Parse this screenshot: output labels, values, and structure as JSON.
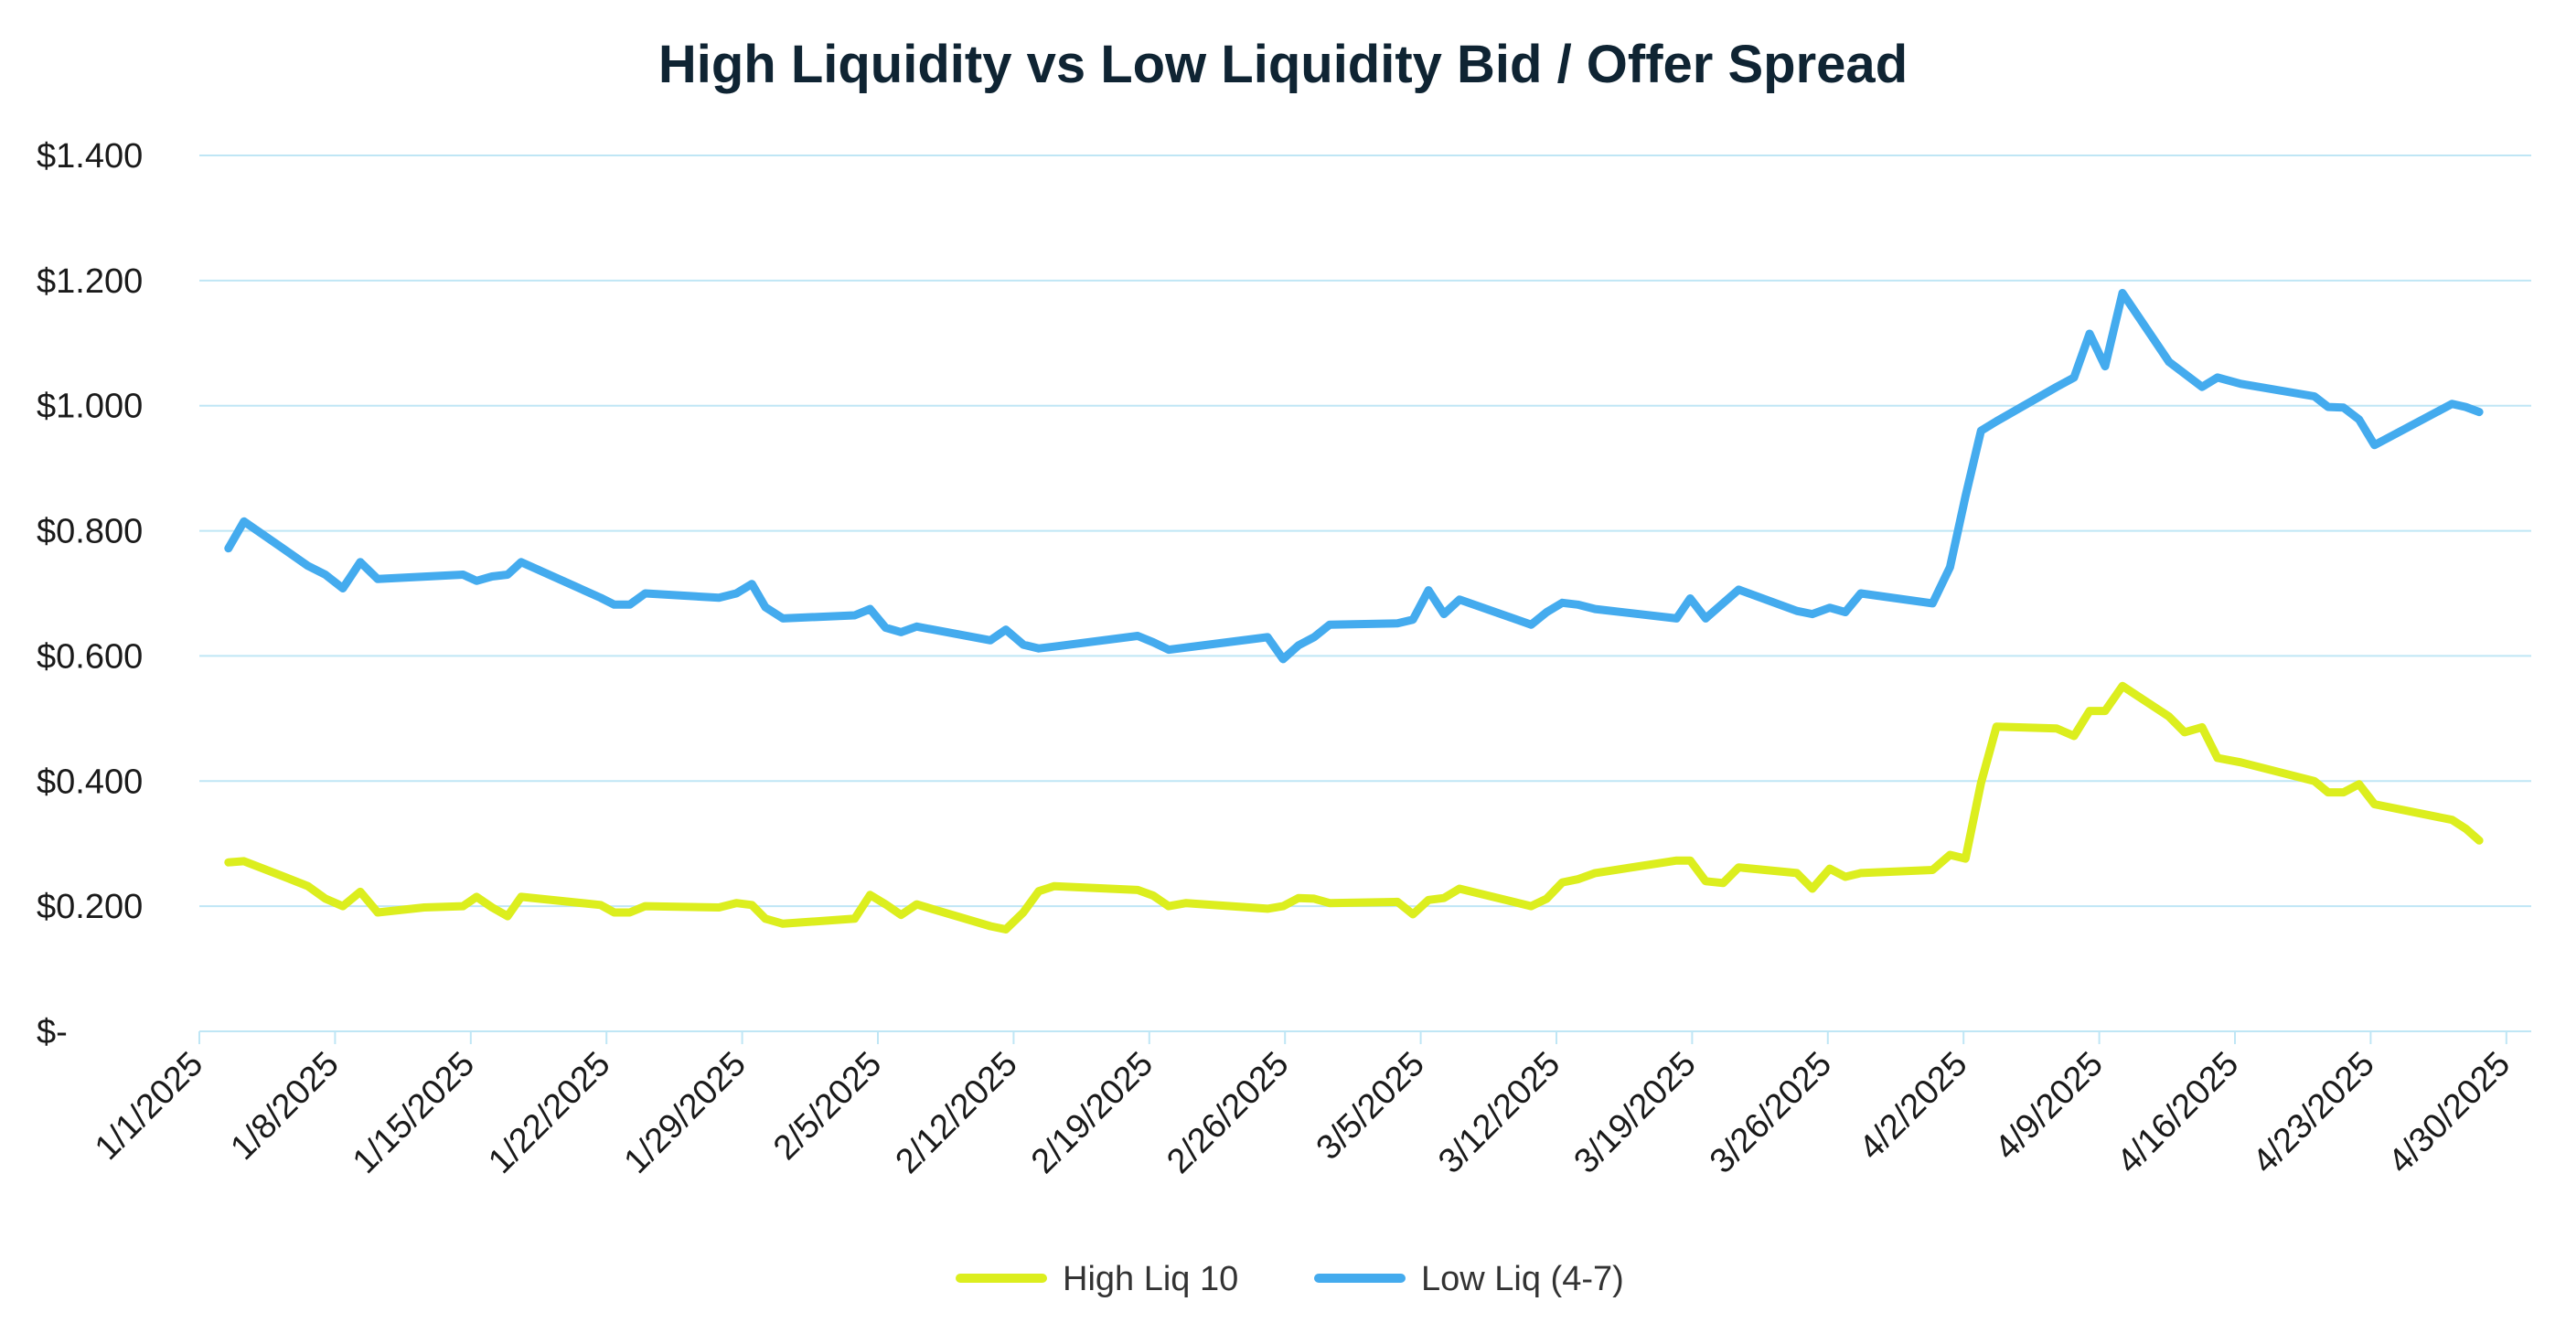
{
  "chart_data": {
    "type": "line",
    "title": "High Liquidity vs Low Liquidity Bid / Offer Spread",
    "xlabel": "",
    "ylabel": "",
    "ylim": [
      0,
      1.4
    ],
    "xlim": [
      "1/1/2025",
      "4/30/2025"
    ],
    "y_ticks": [
      {
        "value": 0,
        "label": "$-"
      },
      {
        "value": 0.2,
        "label": "$0.200"
      },
      {
        "value": 0.4,
        "label": "$0.400"
      },
      {
        "value": 0.6,
        "label": "$0.600"
      },
      {
        "value": 0.8,
        "label": "$0.800"
      },
      {
        "value": 1.0,
        "label": "$1.000"
      },
      {
        "value": 1.2,
        "label": "$1.200"
      },
      {
        "value": 1.4,
        "label": "$1.400"
      }
    ],
    "x_ticks": [
      {
        "day": 0,
        "label": "1/1/2025"
      },
      {
        "day": 7,
        "label": "1/8/2025"
      },
      {
        "day": 14,
        "label": "1/15/2025"
      },
      {
        "day": 21,
        "label": "1/22/2025"
      },
      {
        "day": 28,
        "label": "1/29/2025"
      },
      {
        "day": 35,
        "label": "2/5/2025"
      },
      {
        "day": 42,
        "label": "2/12/2025"
      },
      {
        "day": 49,
        "label": "2/19/2025"
      },
      {
        "day": 56,
        "label": "2/26/2025"
      },
      {
        "day": 63,
        "label": "3/5/2025"
      },
      {
        "day": 70,
        "label": "3/12/2025"
      },
      {
        "day": 77,
        "label": "3/19/2025"
      },
      {
        "day": 84,
        "label": "3/26/2025"
      },
      {
        "day": 91,
        "label": "4/2/2025"
      },
      {
        "day": 98,
        "label": "4/9/2025"
      },
      {
        "day": 105,
        "label": "4/16/2025"
      },
      {
        "day": 112,
        "label": "4/23/2025"
      },
      {
        "day": 119,
        "label": "4/30/2025"
      }
    ],
    "legend_position": "bottom",
    "series": [
      {
        "name": "High Liq 10",
        "color": "#dcee1e",
        "points": [
          [
            1.5,
            0.27
          ],
          [
            2.3,
            0.272
          ],
          [
            4.3,
            0.248
          ],
          [
            5.6,
            0.232
          ],
          [
            6.5,
            0.212
          ],
          [
            7.4,
            0.2
          ],
          [
            8.3,
            0.223
          ],
          [
            9.2,
            0.19
          ],
          [
            11.6,
            0.198
          ],
          [
            13.6,
            0.2
          ],
          [
            14.3,
            0.215
          ],
          [
            15.1,
            0.198
          ],
          [
            15.9,
            0.184
          ],
          [
            16.6,
            0.215
          ],
          [
            20.7,
            0.202
          ],
          [
            21.4,
            0.19
          ],
          [
            22.2,
            0.19
          ],
          [
            23.0,
            0.2
          ],
          [
            26.8,
            0.198
          ],
          [
            27.7,
            0.205
          ],
          [
            28.5,
            0.202
          ],
          [
            29.2,
            0.18
          ],
          [
            30.1,
            0.172
          ],
          [
            33.8,
            0.18
          ],
          [
            34.6,
            0.218
          ],
          [
            35.4,
            0.203
          ],
          [
            36.2,
            0.186
          ],
          [
            37.0,
            0.203
          ],
          [
            40.8,
            0.168
          ],
          [
            41.6,
            0.163
          ],
          [
            42.5,
            0.19
          ],
          [
            43.3,
            0.224
          ],
          [
            44.1,
            0.232
          ],
          [
            48.4,
            0.226
          ],
          [
            49.2,
            0.217
          ],
          [
            50.0,
            0.2
          ],
          [
            50.9,
            0.205
          ],
          [
            55.1,
            0.196
          ],
          [
            55.9,
            0.2
          ],
          [
            56.7,
            0.213
          ],
          [
            57.5,
            0.212
          ],
          [
            58.3,
            0.205
          ],
          [
            61.8,
            0.207
          ],
          [
            62.6,
            0.187
          ],
          [
            63.4,
            0.21
          ],
          [
            64.2,
            0.213
          ],
          [
            65.0,
            0.228
          ],
          [
            68.7,
            0.2
          ],
          [
            69.5,
            0.212
          ],
          [
            70.3,
            0.238
          ],
          [
            71.1,
            0.243
          ],
          [
            72.0,
            0.253
          ],
          [
            76.2,
            0.273
          ],
          [
            76.9,
            0.273
          ],
          [
            77.7,
            0.24
          ],
          [
            78.6,
            0.237
          ],
          [
            79.4,
            0.262
          ],
          [
            82.4,
            0.253
          ],
          [
            83.2,
            0.228
          ],
          [
            84.1,
            0.26
          ],
          [
            84.9,
            0.247
          ],
          [
            85.7,
            0.253
          ],
          [
            89.4,
            0.258
          ],
          [
            90.3,
            0.282
          ],
          [
            91.1,
            0.276
          ],
          [
            91.9,
            0.397
          ],
          [
            92.7,
            0.487
          ],
          [
            95.8,
            0.484
          ],
          [
            96.7,
            0.472
          ],
          [
            97.5,
            0.512
          ],
          [
            98.3,
            0.512
          ],
          [
            99.2,
            0.552
          ],
          [
            101.6,
            0.503
          ],
          [
            102.4,
            0.478
          ],
          [
            103.3,
            0.486
          ],
          [
            104.1,
            0.437
          ],
          [
            105.3,
            0.43
          ],
          [
            109.1,
            0.4
          ],
          [
            109.8,
            0.382
          ],
          [
            110.6,
            0.382
          ],
          [
            111.4,
            0.395
          ],
          [
            112.2,
            0.363
          ],
          [
            116.2,
            0.338
          ],
          [
            116.9,
            0.324
          ],
          [
            117.6,
            0.305
          ]
        ]
      },
      {
        "name": "Low Liq (4-7)",
        "color": "#44abee",
        "points": [
          [
            1.5,
            0.772
          ],
          [
            2.3,
            0.815
          ],
          [
            4.3,
            0.772
          ],
          [
            5.6,
            0.744
          ],
          [
            6.5,
            0.73
          ],
          [
            7.4,
            0.708
          ],
          [
            8.3,
            0.75
          ],
          [
            9.2,
            0.723
          ],
          [
            13.6,
            0.73
          ],
          [
            14.3,
            0.72
          ],
          [
            15.1,
            0.727
          ],
          [
            15.9,
            0.73
          ],
          [
            16.6,
            0.75
          ],
          [
            20.7,
            0.693
          ],
          [
            21.4,
            0.682
          ],
          [
            22.2,
            0.682
          ],
          [
            23.0,
            0.7
          ],
          [
            26.8,
            0.693
          ],
          [
            27.7,
            0.7
          ],
          [
            28.5,
            0.715
          ],
          [
            29.2,
            0.678
          ],
          [
            30.1,
            0.66
          ],
          [
            33.8,
            0.665
          ],
          [
            34.6,
            0.675
          ],
          [
            35.4,
            0.645
          ],
          [
            36.2,
            0.638
          ],
          [
            37.0,
            0.647
          ],
          [
            40.8,
            0.625
          ],
          [
            41.6,
            0.642
          ],
          [
            42.5,
            0.618
          ],
          [
            43.3,
            0.612
          ],
          [
            44.1,
            0.615
          ],
          [
            48.4,
            0.632
          ],
          [
            49.2,
            0.622
          ],
          [
            50.0,
            0.61
          ],
          [
            55.1,
            0.63
          ],
          [
            55.9,
            0.595
          ],
          [
            56.7,
            0.617
          ],
          [
            57.5,
            0.63
          ],
          [
            58.3,
            0.65
          ],
          [
            61.8,
            0.652
          ],
          [
            62.6,
            0.658
          ],
          [
            63.4,
            0.705
          ],
          [
            64.2,
            0.667
          ],
          [
            65.0,
            0.69
          ],
          [
            68.7,
            0.65
          ],
          [
            69.5,
            0.67
          ],
          [
            70.3,
            0.685
          ],
          [
            71.1,
            0.682
          ],
          [
            72.0,
            0.675
          ],
          [
            76.2,
            0.66
          ],
          [
            76.9,
            0.692
          ],
          [
            77.7,
            0.66
          ],
          [
            79.4,
            0.706
          ],
          [
            82.4,
            0.672
          ],
          [
            83.2,
            0.667
          ],
          [
            84.1,
            0.677
          ],
          [
            84.9,
            0.67
          ],
          [
            85.7,
            0.7
          ],
          [
            89.4,
            0.684
          ],
          [
            90.3,
            0.742
          ],
          [
            91.1,
            0.855
          ],
          [
            91.9,
            0.96
          ],
          [
            92.7,
            0.975
          ],
          [
            95.8,
            1.03
          ],
          [
            96.7,
            1.045
          ],
          [
            97.5,
            1.115
          ],
          [
            98.3,
            1.063
          ],
          [
            99.2,
            1.18
          ],
          [
            101.6,
            1.07
          ],
          [
            103.3,
            1.03
          ],
          [
            104.1,
            1.045
          ],
          [
            105.3,
            1.035
          ],
          [
            109.1,
            1.015
          ],
          [
            109.8,
            0.998
          ],
          [
            110.6,
            0.997
          ],
          [
            111.4,
            0.978
          ],
          [
            112.2,
            0.937
          ],
          [
            116.2,
            1.003
          ],
          [
            116.9,
            0.998
          ],
          [
            117.6,
            0.99
          ]
        ]
      }
    ]
  }
}
